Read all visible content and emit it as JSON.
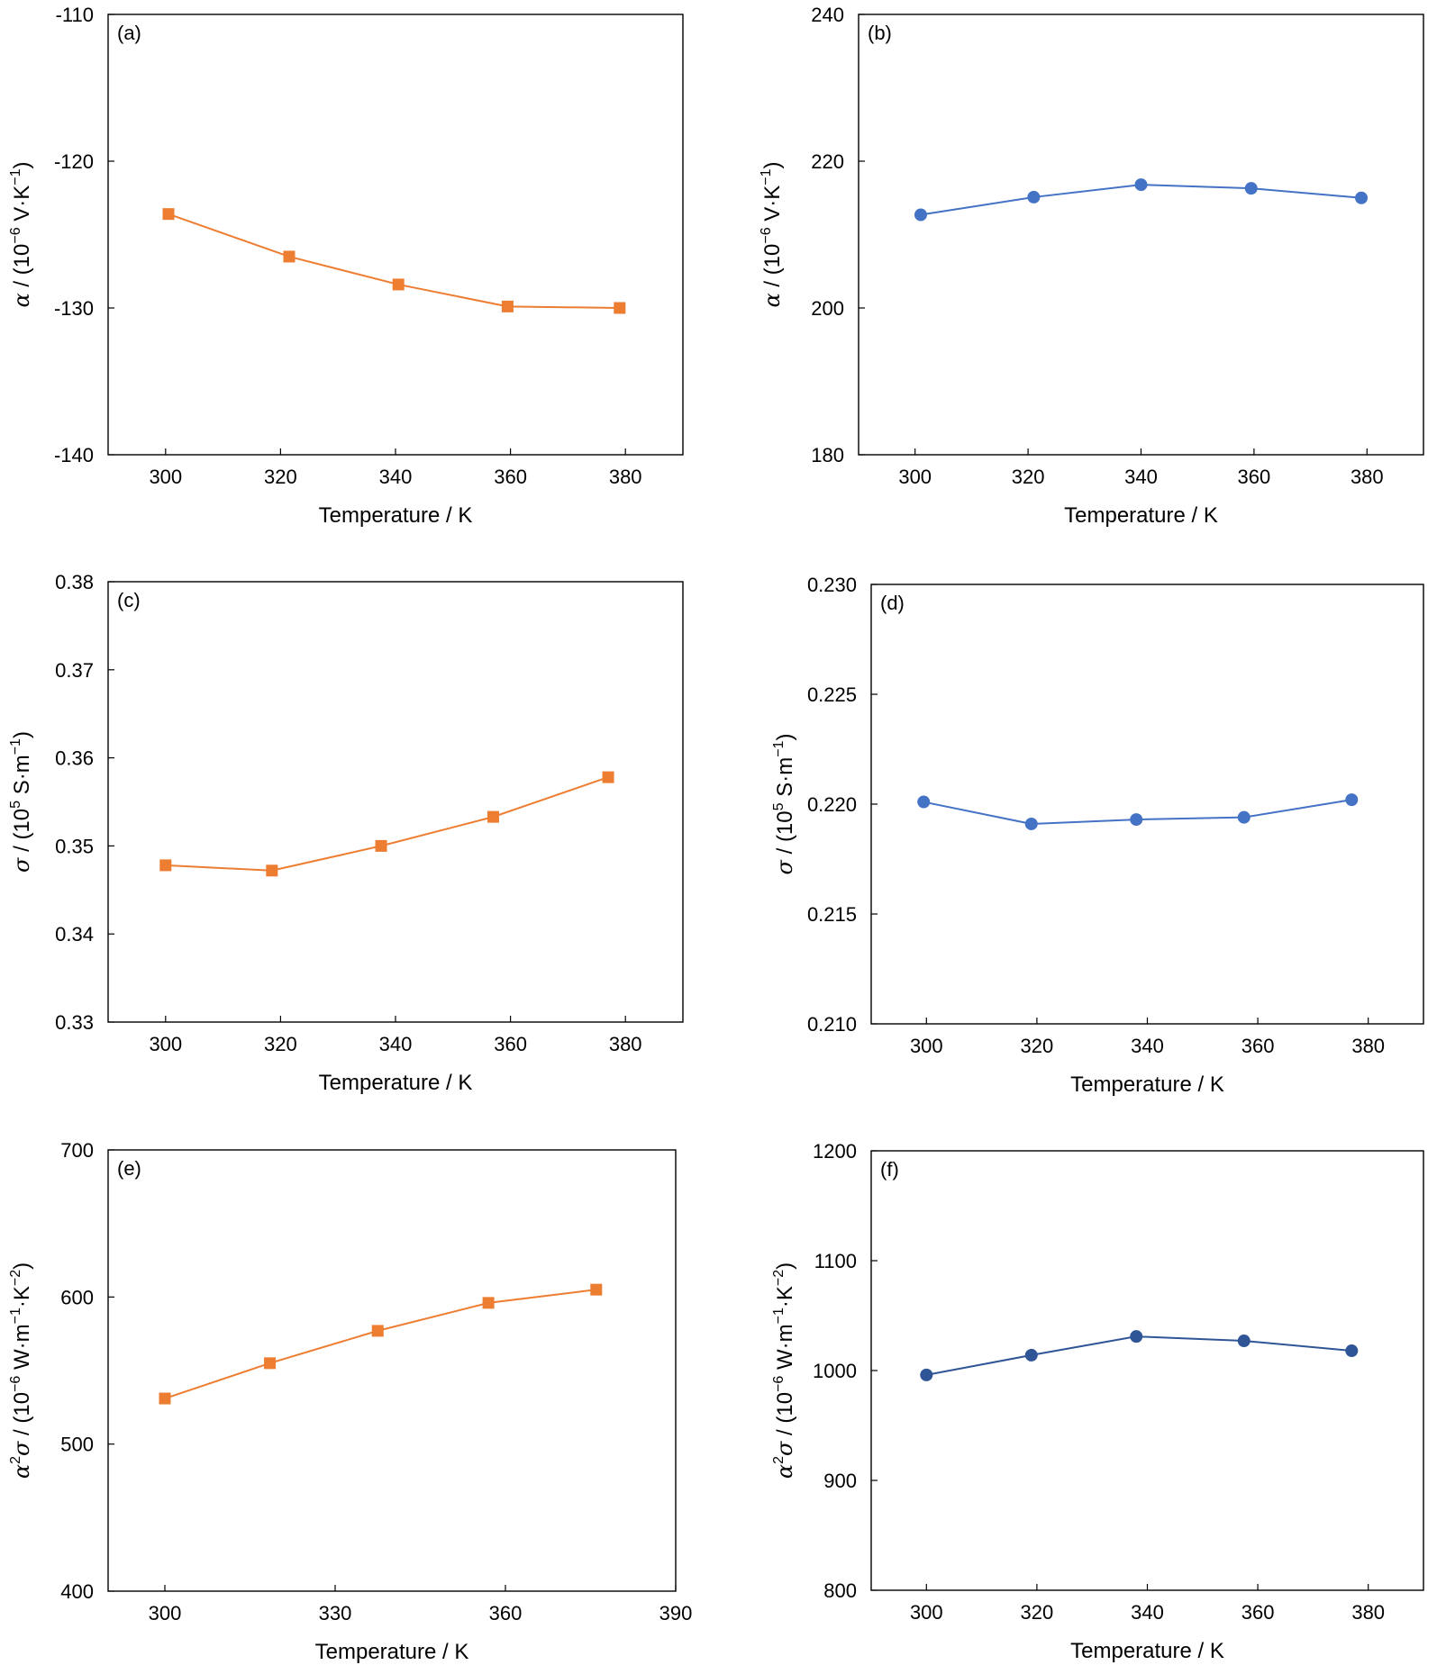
{
  "chart_data": [
    {
      "id": "a",
      "type": "line",
      "panel_label": "(a)",
      "xlabel": "Temperature / K",
      "ylabel": {
        "symbol": "α",
        "text": " / (10",
        "exp": "−6",
        "unit": " V·K",
        "unit_exp": "−1",
        "close": ")"
      },
      "xlim": [
        290,
        390
      ],
      "ylim": [
        -140,
        -110
      ],
      "xticks": [
        300,
        320,
        340,
        360,
        380
      ],
      "yticks": [
        -140,
        -130,
        -120,
        -110
      ],
      "ytick_labels": [
        "-140",
        "-130",
        "-120",
        "-110"
      ],
      "marker": "square",
      "color": "#ED7D31",
      "series": [
        {
          "x": [
            300.5,
            321.5,
            340.5,
            359.5,
            379
          ],
          "values": [
            -123.6,
            -126.5,
            -128.4,
            -129.9,
            -130.0
          ]
        }
      ]
    },
    {
      "id": "b",
      "type": "line",
      "panel_label": "(b)",
      "xlabel": "Temperature / K",
      "ylabel": {
        "symbol": "α",
        "text": " / (10",
        "exp": "−6",
        "unit": " V·K",
        "unit_exp": "−1",
        "close": ")"
      },
      "xlim": [
        290,
        390
      ],
      "ylim": [
        180,
        240
      ],
      "xticks": [
        300,
        320,
        340,
        360,
        380
      ],
      "yticks": [
        180,
        200,
        220,
        240
      ],
      "ytick_labels": [
        "180",
        "200",
        "220",
        "240"
      ],
      "marker": "circle",
      "color": "#4472C4",
      "series": [
        {
          "x": [
            301,
            321,
            340,
            359.5,
            379
          ],
          "values": [
            212.7,
            215.1,
            216.8,
            216.3,
            215.0
          ]
        }
      ]
    },
    {
      "id": "c",
      "type": "line",
      "panel_label": "(c)",
      "xlabel": "Temperature / K",
      "ylabel": {
        "symbol": "σ",
        "text": " / (10",
        "exp": "5",
        "unit": " S·m",
        "unit_exp": "−1",
        "close": ")"
      },
      "xlim": [
        290,
        390
      ],
      "ylim": [
        0.33,
        0.38
      ],
      "xticks": [
        300,
        320,
        340,
        360,
        380
      ],
      "yticks": [
        0.33,
        0.34,
        0.35,
        0.36,
        0.37,
        0.38
      ],
      "ytick_labels": [
        "0.33",
        "0.34",
        "0.35",
        "0.36",
        "0.37",
        "0.38"
      ],
      "marker": "square",
      "color": "#ED7D31",
      "series": [
        {
          "x": [
            300,
            318.5,
            337.5,
            357,
            377
          ],
          "values": [
            0.3478,
            0.3472,
            0.35,
            0.3533,
            0.3578
          ]
        }
      ]
    },
    {
      "id": "d",
      "type": "line",
      "panel_label": "(d)",
      "xlabel": "Temperature / K",
      "ylabel": {
        "symbol": "σ",
        "text": " / (10",
        "exp": "5",
        "unit": " S·m",
        "unit_exp": "−1",
        "close": ")"
      },
      "xlim": [
        290,
        390
      ],
      "ylim": [
        0.21,
        0.23
      ],
      "xticks": [
        300,
        320,
        340,
        360,
        380
      ],
      "yticks": [
        0.21,
        0.215,
        0.22,
        0.225,
        0.23
      ],
      "ytick_labels": [
        "0.210",
        "0.215",
        "0.220",
        "0.225",
        "0.230"
      ],
      "marker": "circle",
      "color": "#4472C4",
      "series": [
        {
          "x": [
            299.5,
            319,
            338,
            357.5,
            377
          ],
          "values": [
            0.2201,
            0.2191,
            0.2193,
            0.2194,
            0.2202
          ]
        }
      ]
    },
    {
      "id": "e",
      "type": "line",
      "panel_label": "(e)",
      "xlabel": "Temperature / K",
      "ylabel": {
        "symbol": "α",
        "sup": "2",
        "symbol2": "σ",
        "text": " / (10",
        "exp": "−6",
        "unit": " W·m",
        "unit_exp": "−1",
        "unit2": "·K",
        "unit2_exp": "−2",
        "close": ")"
      },
      "xlim": [
        290,
        390
      ],
      "ylim": [
        400,
        700
      ],
      "xticks": [
        300,
        330,
        360,
        390
      ],
      "yticks": [
        400,
        500,
        600,
        700
      ],
      "ytick_labels": [
        "400",
        "500",
        "600",
        "700"
      ],
      "marker": "square",
      "color": "#ED7D31",
      "series": [
        {
          "x": [
            300,
            318.5,
            337.5,
            357,
            376
          ],
          "values": [
            531,
            555,
            577,
            596,
            605
          ]
        }
      ]
    },
    {
      "id": "f",
      "type": "line",
      "panel_label": "(f)",
      "xlabel": "Temperature / K",
      "ylabel": {
        "symbol": "α",
        "sup": "2",
        "symbol2": "σ",
        "text": " / (10",
        "exp": "−6",
        "unit": " W·m",
        "unit_exp": "−1",
        "unit2": "·K",
        "unit2_exp": "−2",
        "close": ")"
      },
      "xlim": [
        290,
        390
      ],
      "ylim": [
        800,
        1200
      ],
      "xticks": [
        300,
        320,
        340,
        360,
        380
      ],
      "yticks": [
        800,
        900,
        1000,
        1100,
        1200
      ],
      "ytick_labels": [
        "800",
        "900",
        "1000",
        "1100",
        "1200"
      ],
      "marker": "circle",
      "color": "#2F5597",
      "series": [
        {
          "x": [
            300,
            319,
            338,
            357.5,
            377
          ],
          "values": [
            996,
            1014,
            1031,
            1027,
            1018
          ]
        }
      ]
    }
  ]
}
